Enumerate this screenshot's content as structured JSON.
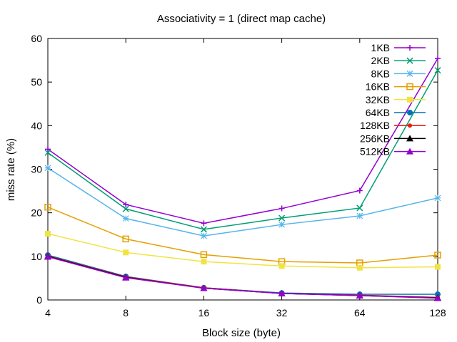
{
  "chart_data": {
    "type": "line",
    "title": "Associativity = 1 (direct map cache)",
    "xlabel": "Block size (byte)",
    "ylabel": "miss rate (%)",
    "x_scale": "log2",
    "x": [
      4,
      8,
      16,
      32,
      64,
      128
    ],
    "xticks": [
      "4",
      "8",
      "16",
      "32",
      "64",
      "128"
    ],
    "ylim": [
      0,
      60
    ],
    "yticks": [
      "0",
      "10",
      "20",
      "30",
      "40",
      "50",
      "60"
    ],
    "grid": false,
    "legend_position": "top-right",
    "series": [
      {
        "name": "1KB",
        "color": "#9400d3",
        "marker": "plus",
        "values": [
          34.6,
          21.9,
          17.6,
          21.0,
          25.1,
          55.4
        ]
      },
      {
        "name": "2KB",
        "color": "#009e73",
        "marker": "cross",
        "values": [
          33.8,
          20.9,
          16.2,
          18.8,
          21.1,
          52.7
        ]
      },
      {
        "name": "8KB",
        "color": "#56b4e9",
        "marker": "star",
        "values": [
          30.3,
          18.7,
          14.7,
          17.3,
          19.3,
          23.4
        ]
      },
      {
        "name": "16KB",
        "color": "#e69f00",
        "marker": "square-open",
        "values": [
          21.3,
          14.0,
          10.4,
          8.8,
          8.5,
          10.3
        ]
      },
      {
        "name": "32KB",
        "color": "#f0e442",
        "marker": "square-filled",
        "values": [
          15.2,
          10.9,
          8.8,
          7.8,
          7.4,
          7.6
        ]
      },
      {
        "name": "64KB",
        "color": "#0072b2",
        "marker": "circle-filled",
        "values": [
          10.3,
          5.4,
          2.8,
          1.6,
          1.3,
          1.3
        ]
      },
      {
        "name": "128KB",
        "color": "#e51e10",
        "marker": "circle-filled-small",
        "values": [
          10.1,
          5.3,
          2.8,
          1.5,
          1.1,
          0.6
        ]
      },
      {
        "name": "256KB",
        "color": "#000000",
        "marker": "triangle-filled",
        "values": [
          10.0,
          5.2,
          2.7,
          1.5,
          1.0,
          0.5
        ]
      },
      {
        "name": "512KB",
        "color": "#9400d3",
        "marker": "triangle-filled",
        "values": [
          9.9,
          5.1,
          2.7,
          1.5,
          1.0,
          0.4
        ]
      }
    ]
  }
}
